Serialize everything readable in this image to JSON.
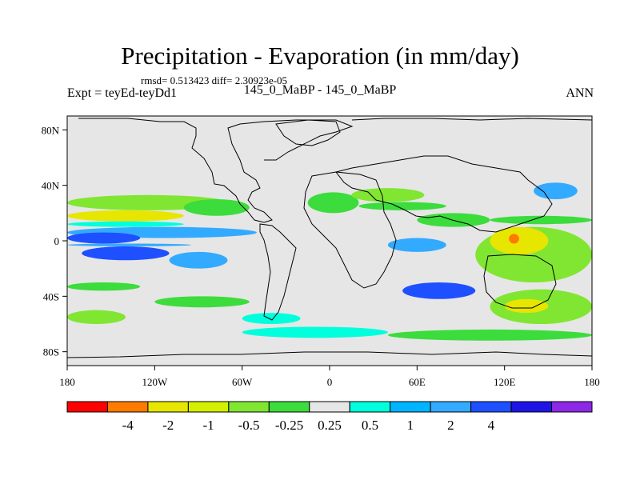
{
  "title": "Precipitation - Evaporation (in mm/day)",
  "stats": "rmsd= 0.513423 diff= 2.30923e-05",
  "left_label": "Expt = teyEd-teyDd1",
  "center_label": "145_0_MaBP - 145_0_MaBP",
  "right_label": "ANN",
  "map": {
    "lon_range": [
      -180,
      180
    ],
    "lat_range": [
      -90,
      90
    ],
    "lon_ticks": [
      {
        "value": -180,
        "label": "180"
      },
      {
        "value": -120,
        "label": "120W"
      },
      {
        "value": -60,
        "label": "60W"
      },
      {
        "value": 0,
        "label": "0"
      },
      {
        "value": 60,
        "label": "60E"
      },
      {
        "value": 120,
        "label": "120E"
      },
      {
        "value": 180,
        "label": "180"
      }
    ],
    "lat_ticks": [
      {
        "value": 80,
        "label": "80N"
      },
      {
        "value": 40,
        "label": "40N"
      },
      {
        "value": 0,
        "label": "0"
      },
      {
        "value": -40,
        "label": "40S"
      },
      {
        "value": -80,
        "label": "80S"
      }
    ],
    "background_color": "#e6e6e6",
    "fields": [
      {
        "level": "-1",
        "color": "#80e632",
        "lon": [
          -180,
          -70
        ],
        "lat": [
          22,
          33
        ]
      },
      {
        "level": "-2",
        "color": "#e6e600",
        "lon": [
          -180,
          -100
        ],
        "lat": [
          14,
          22
        ]
      },
      {
        "level": "-0.5",
        "color": "#3cdc3c",
        "lon": [
          -100,
          -55
        ],
        "lat": [
          18,
          30
        ]
      },
      {
        "level": "0.5",
        "color": "#00ffdc",
        "lon": [
          -180,
          -100
        ],
        "lat": [
          10,
          14
        ]
      },
      {
        "level": "1",
        "color": "#32aaff",
        "lon": [
          -180,
          -50
        ],
        "lat": [
          2,
          10
        ]
      },
      {
        "level": "2",
        "color": "#1e50ff",
        "lon": [
          -180,
          -130
        ],
        "lat": [
          -2,
          6
        ]
      },
      {
        "level": "1",
        "color": "#32aaff",
        "lon": [
          -180,
          -95
        ],
        "lat": [
          -4,
          -2
        ]
      },
      {
        "level": "2",
        "color": "#1e50ff",
        "lon": [
          -170,
          -110
        ],
        "lat": [
          -14,
          -4
        ]
      },
      {
        "level": "1",
        "color": "#32aaff",
        "lon": [
          -110,
          -70
        ],
        "lat": [
          -20,
          -8
        ]
      },
      {
        "level": "-0.5",
        "color": "#3cdc3c",
        "lon": [
          -180,
          -130
        ],
        "lat": [
          -36,
          -30
        ]
      },
      {
        "level": "-0.5",
        "color": "#3cdc3c",
        "lon": [
          -120,
          -55
        ],
        "lat": [
          -48,
          -40
        ]
      },
      {
        "level": "-1",
        "color": "#80e632",
        "lon": [
          -180,
          -140
        ],
        "lat": [
          -60,
          -50
        ]
      },
      {
        "level": "0.5",
        "color": "#00ffdc",
        "lon": [
          -60,
          -20
        ],
        "lat": [
          -60,
          -52
        ]
      },
      {
        "level": "-0.5",
        "color": "#3cdc3c",
        "lon": [
          -15,
          20
        ],
        "lat": [
          20,
          35
        ]
      },
      {
        "level": "-1",
        "color": "#80e632",
        "lon": [
          15,
          65
        ],
        "lat": [
          28,
          38
        ]
      },
      {
        "level": "-0.5",
        "color": "#3cdc3c",
        "lon": [
          20,
          80
        ],
        "lat": [
          22,
          28
        ]
      },
      {
        "level": "-0.5",
        "color": "#3cdc3c",
        "lon": [
          60,
          110
        ],
        "lat": [
          10,
          20
        ]
      },
      {
        "level": "1",
        "color": "#32aaff",
        "lon": [
          40,
          80
        ],
        "lat": [
          -8,
          2
        ]
      },
      {
        "level": "-1",
        "color": "#80e632",
        "lon": [
          100,
          180
        ],
        "lat": [
          -30,
          10
        ]
      },
      {
        "level": "-2",
        "color": "#e6e600",
        "lon": [
          110,
          150
        ],
        "lat": [
          -10,
          10
        ]
      },
      {
        "level": "-4",
        "color": "#ff7a00",
        "lon": [
          123,
          130
        ],
        "lat": [
          -2,
          5
        ]
      },
      {
        "level": "1",
        "color": "#32aaff",
        "lon": [
          140,
          170
        ],
        "lat": [
          30,
          42
        ]
      },
      {
        "level": "-0.5",
        "color": "#3cdc3c",
        "lon": [
          110,
          180
        ],
        "lat": [
          12,
          18
        ]
      },
      {
        "level": "2",
        "color": "#1e50ff",
        "lon": [
          50,
          100
        ],
        "lat": [
          -42,
          -30
        ]
      },
      {
        "level": "-1",
        "color": "#80e632",
        "lon": [
          110,
          180
        ],
        "lat": [
          -60,
          -35
        ]
      },
      {
        "level": "-2",
        "color": "#e6e600",
        "lon": [
          120,
          150
        ],
        "lat": [
          -52,
          -42
        ]
      },
      {
        "level": "0.5",
        "color": "#00ffdc",
        "lon": [
          -60,
          40
        ],
        "lat": [
          -70,
          -62
        ]
      },
      {
        "level": "-0.5",
        "color": "#3cdc3c",
        "lon": [
          40,
          180
        ],
        "lat": [
          -72,
          -64
        ]
      }
    ]
  },
  "colorbar": {
    "colors": [
      "#ff0000",
      "#ff7a00",
      "#e6e600",
      "#d2f000",
      "#80e632",
      "#3cdc3c",
      "#e6e6e6",
      "#00ffdc",
      "#00b4ff",
      "#32aaff",
      "#1e50ff",
      "#1e14e6",
      "#8c28e6"
    ],
    "labels": [
      "-4",
      "-2",
      "-1",
      "-0.5",
      "-0.25",
      "0.25",
      "0.5",
      "1",
      "2",
      "4"
    ]
  }
}
